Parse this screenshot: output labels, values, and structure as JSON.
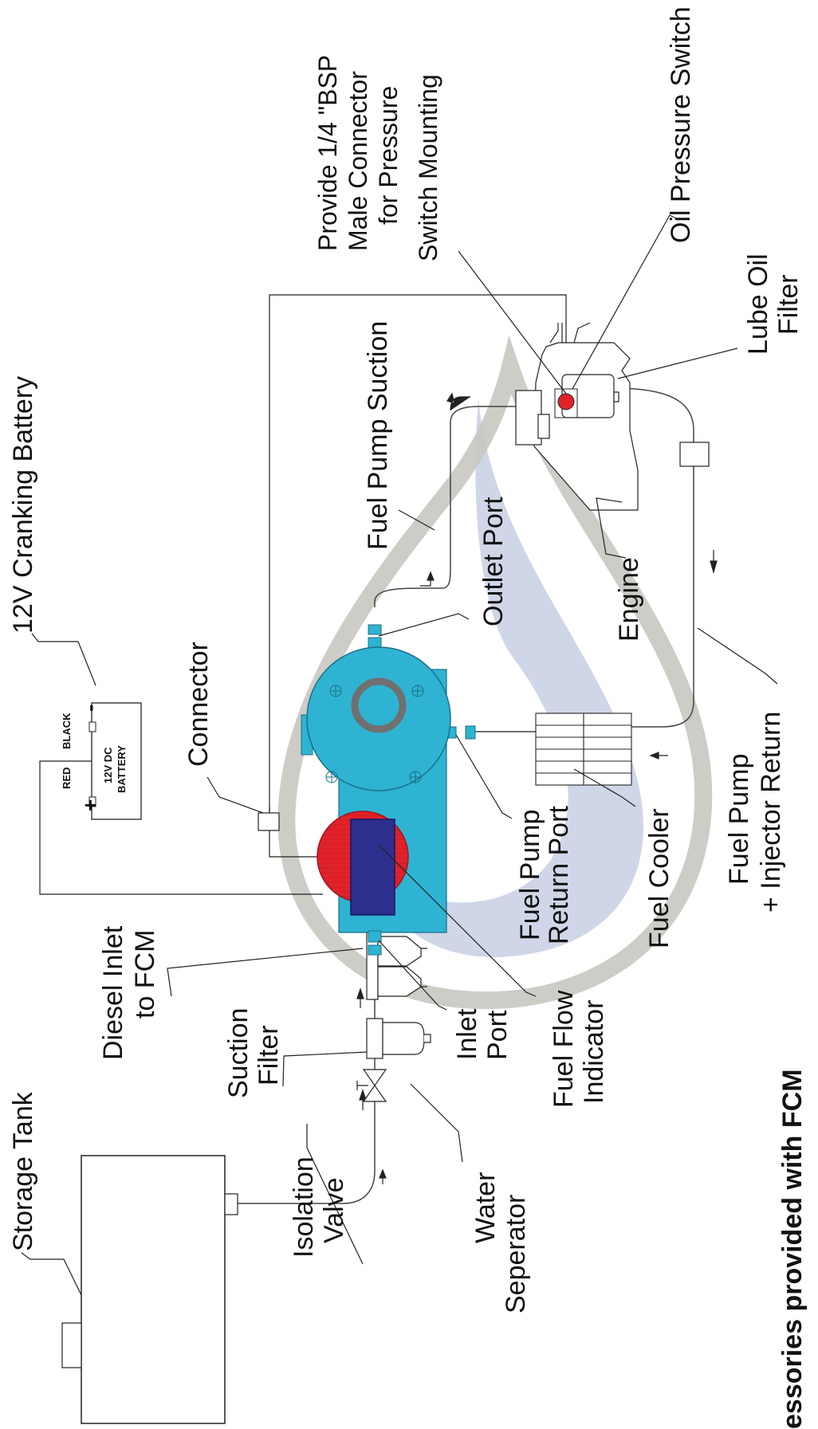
{
  "colors": {
    "fcm_body": "#2fb3d3",
    "fcm_body_dark": "#1d8fae",
    "flow_indicator_disc": "#e0222b",
    "flow_indicator_window": "#2d2f8f",
    "pressure_switch": "#e0222b",
    "watermark_gray": "#c9c6c0",
    "watermark_blue": "#c7cfe4",
    "line": "#222222"
  },
  "labels": {
    "battery": "12V Cranking Battery",
    "connector": "Connector",
    "provide_line1": "Provide 1/4 \"BSP",
    "provide_line2": "Male Connector",
    "provide_line3": "for Pressure",
    "provide_line4": "Switch Mounting",
    "oil_pressure_switch": "Oil Pressure Switch",
    "lube_oil_line1": "Lube Oil",
    "lube_oil_line2": "Filter",
    "fuel_pump_suction": "Fuel Pump Suction",
    "outlet_port": "Outlet Port",
    "engine": "Engine",
    "fuel_pump_return_line1": "Fuel Pump",
    "fuel_pump_return_line2": "+ Injector Return",
    "fuel_cooler": "Fuel Cooler",
    "return_port_line1": "Fuel Pump",
    "return_port_line2": "Return Port",
    "flow_indicator_line1": "Fuel Flow",
    "flow_indicator_line2": "Indicator",
    "inlet_port_line1": "Inlet",
    "inlet_port_line2": "Port",
    "diesel_inlet_line1": "Diesel Inlet",
    "diesel_inlet_line2": "to FCM",
    "suction_filter_line1": "Suction",
    "suction_filter_line2": "Filter",
    "storage_tank": "Storage Tank",
    "isolation_valve_line1": "Isolation",
    "isolation_valve_line2": "Valve",
    "water_separator_line1": "Water",
    "water_separator_line2": "Seperator",
    "accessories_note": "essories provided with FCM"
  },
  "battery_box": {
    "red": "RED",
    "black": "BLACK",
    "plus": "+",
    "minus": "-",
    "name_line1": "12V DC",
    "name_line2": "BATTERY"
  }
}
